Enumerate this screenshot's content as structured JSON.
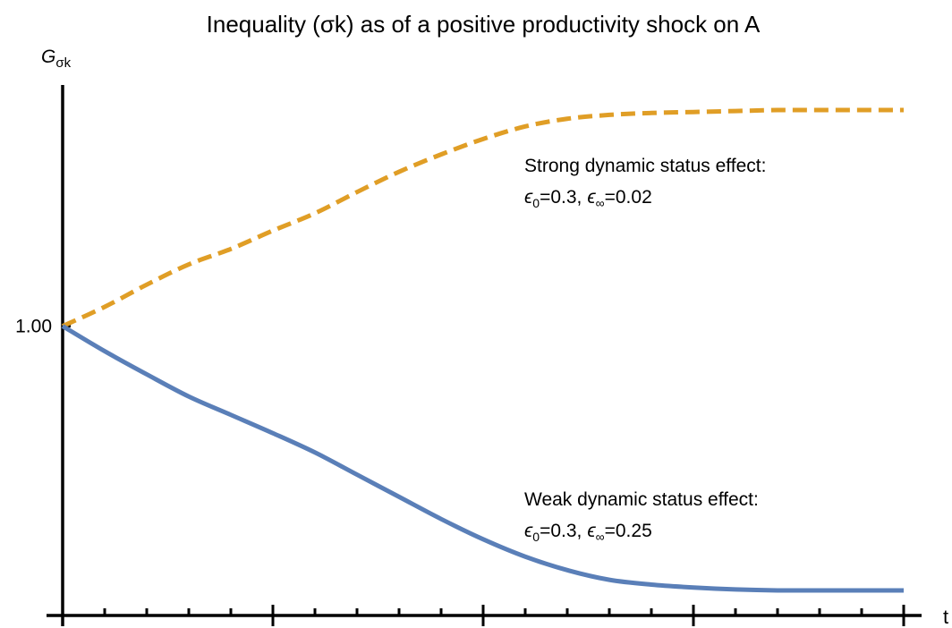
{
  "chart_data": {
    "type": "line",
    "title": "Inequality (σk) as of a positive productivity shock on A",
    "y_label": {
      "main": "G",
      "sub": "σk"
    },
    "x_label": "t",
    "x": [
      0,
      1,
      2,
      3,
      4,
      5,
      6,
      7,
      8,
      9,
      10,
      11,
      12,
      13,
      14,
      15,
      16,
      17,
      18,
      19,
      20
    ],
    "xlim": [
      0,
      20
    ],
    "xticks": [
      0,
      1,
      2,
      3,
      4,
      5,
      6,
      7,
      8,
      9,
      10,
      11,
      12,
      13,
      14,
      15,
      16,
      17,
      18,
      19,
      20
    ],
    "ylim": [
      0.7,
      1.25
    ],
    "yticks": [
      {
        "value": 1,
        "label": "1.00"
      }
    ],
    "series": [
      {
        "name": "Strong dynamic status effect",
        "color": "#e09e26",
        "dashed": true,
        "values": [
          1.0,
          1.02,
          1.043,
          1.064,
          1.08,
          1.099,
          1.117,
          1.139,
          1.16,
          1.178,
          1.194,
          1.207,
          1.215,
          1.219,
          1.221,
          1.222,
          1.223,
          1.224,
          1.224,
          1.224,
          1.224
        ]
      },
      {
        "name": "Weak dynamic status effect",
        "color": "#5a7fb8",
        "dashed": false,
        "values": [
          1.0,
          0.974,
          0.95,
          0.927,
          0.908,
          0.889,
          0.869,
          0.846,
          0.823,
          0.8,
          0.779,
          0.761,
          0.747,
          0.737,
          0.732,
          0.729,
          0.727,
          0.726,
          0.726,
          0.726,
          0.726
        ]
      }
    ],
    "annotations": [
      {
        "heading": "Strong dynamic status effect:",
        "params": [
          {
            "symbol": "ϵ",
            "sub": "0",
            "value": "=0.3,"
          },
          {
            "symbol": "ϵ",
            "sub": "∞",
            "value": "=0.02"
          }
        ]
      },
      {
        "heading": "Weak dynamic status effect:",
        "params": [
          {
            "symbol": "ϵ",
            "sub": "0",
            "value": "=0.3,"
          },
          {
            "symbol": "ϵ",
            "sub": "∞",
            "value": "=0.25"
          }
        ]
      }
    ]
  }
}
